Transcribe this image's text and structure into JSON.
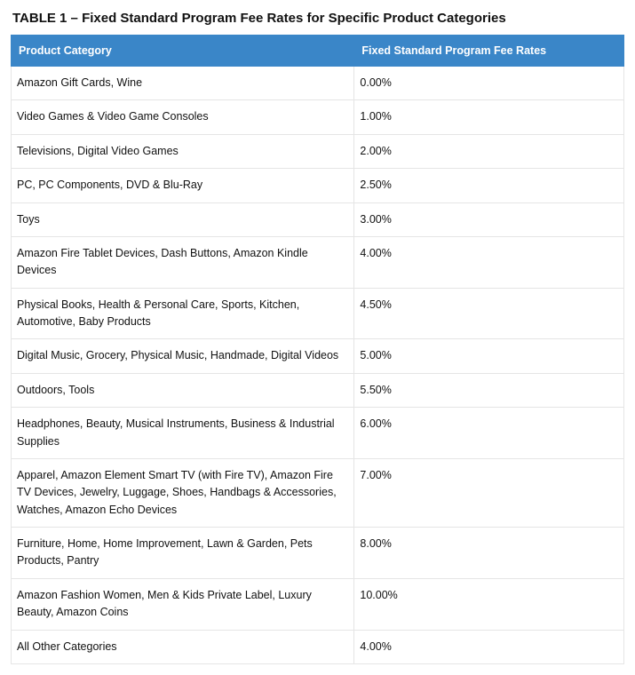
{
  "title": "TABLE 1 – Fixed Standard Program Fee Rates for Specific Product Categories",
  "columns": [
    "Product Category",
    "Fixed Standard Program Fee Rates"
  ],
  "rows": [
    {
      "category": "Amazon Gift Cards, Wine",
      "rate": "0.00%"
    },
    {
      "category": "Video Games & Video Game Consoles",
      "rate": "1.00%"
    },
    {
      "category": "Televisions, Digital Video Games",
      "rate": "2.00%"
    },
    {
      "category": "PC, PC Components, DVD & Blu-Ray",
      "rate": "2.50%"
    },
    {
      "category": "Toys",
      "rate": "3.00%"
    },
    {
      "category": "Amazon Fire Tablet Devices, Dash Buttons, Amazon Kindle Devices",
      "rate": "4.00%"
    },
    {
      "category": "Physical Books, Health & Personal Care, Sports, Kitchen, Automotive, Baby Products",
      "rate": "4.50%"
    },
    {
      "category": "Digital Music, Grocery, Physical Music, Handmade, Digital Videos",
      "rate": "5.00%"
    },
    {
      "category": "Outdoors, Tools",
      "rate": "5.50%"
    },
    {
      "category": "Headphones, Beauty, Musical Instruments, Business & Industrial Supplies",
      "rate": "6.00%"
    },
    {
      "category": "Apparel, Amazon Element Smart TV (with Fire TV), Amazon Fire TV Devices, Jewelry, Luggage, Shoes, Handbags & Accessories, Watches, Amazon Echo Devices",
      "rate": "7.00%"
    },
    {
      "category": "Furniture, Home, Home Improvement, Lawn & Garden, Pets Products, Pantry",
      "rate": "8.00%"
    },
    {
      "category": "Amazon Fashion Women, Men & Kids Private Label, Luxury Beauty, Amazon Coins",
      "rate": "10.00%"
    },
    {
      "category": "All Other Categories",
      "rate": "4.00%"
    }
  ],
  "colors": {
    "header_bg": "#3a86c8",
    "header_text": "#ffffff",
    "border": "#e5e5e5",
    "body_text": "#111111",
    "page_bg": "#ffffff"
  }
}
